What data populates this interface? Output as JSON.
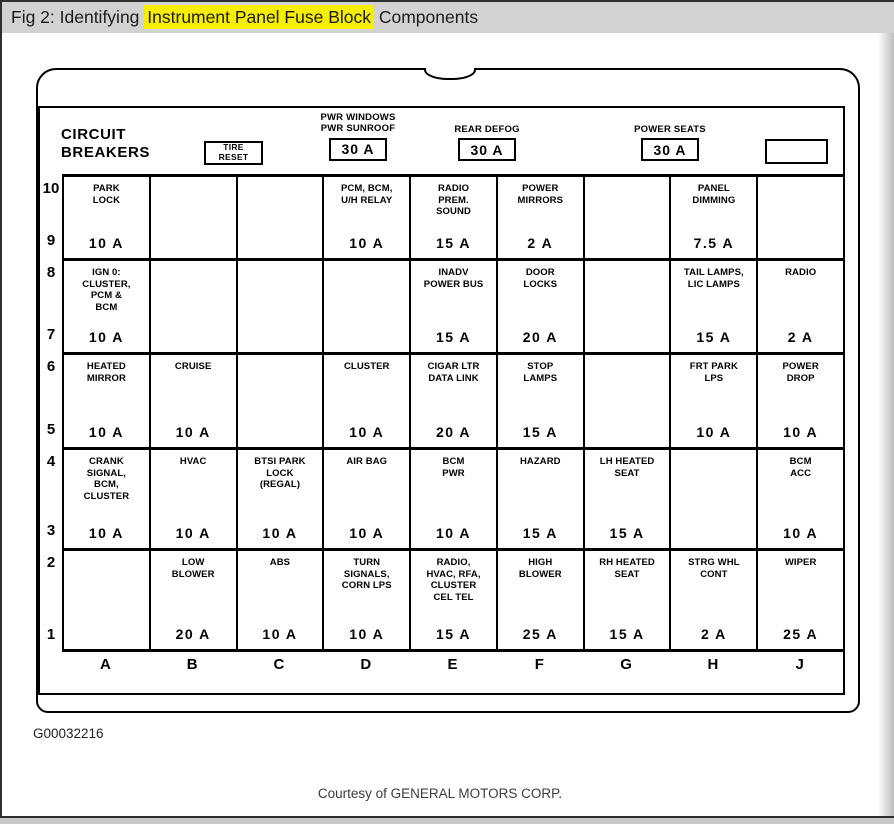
{
  "title_bar": {
    "prefix": "Fig 2: Identifying ",
    "highlight": "Instrument Panel Fuse Block",
    "suffix": " Components",
    "highlight_color": "#f7ee00",
    "bar_color": "#d2d2d2"
  },
  "header": {
    "circuit_breakers_line1": "CIRCUIT",
    "circuit_breakers_line2": "BREAKERS",
    "tire_reset_line1": "TIRE",
    "tire_reset_line2": "RESET",
    "breakers": [
      {
        "label_lines": [
          "PWR WINDOWS",
          "PWR SUNROOF"
        ],
        "value": "30 A"
      },
      {
        "label_lines": [
          "REAR DEFOG"
        ],
        "value": "30 A"
      },
      {
        "label_lines": [
          "POWER SEATS"
        ],
        "value": "30 A"
      },
      {
        "label_lines": [],
        "value": ""
      }
    ]
  },
  "grid": {
    "column_letters": [
      "A",
      "B",
      "C",
      "D",
      "E",
      "F",
      "G",
      "H",
      "J"
    ],
    "bands": [
      {
        "row_top": "10",
        "row_bottom": "9",
        "cells": [
          {
            "label": "PARK\nLOCK",
            "amp": "10 A"
          },
          {
            "label": "",
            "amp": ""
          },
          {
            "label": "",
            "amp": ""
          },
          {
            "label": "PCM, BCM,\nU/H RELAY",
            "amp": "10 A"
          },
          {
            "label": "RADIO\nPREM.\nSOUND",
            "amp": "15 A"
          },
          {
            "label": "POWER\nMIRRORS",
            "amp": "2 A"
          },
          {
            "label": "",
            "amp": ""
          },
          {
            "label": "PANEL\nDIMMING",
            "amp": "7.5 A"
          },
          {
            "label": "",
            "amp": ""
          }
        ]
      },
      {
        "row_top": "8",
        "row_bottom": "7",
        "cells": [
          {
            "label": "IGN 0:\nCLUSTER,\nPCM &\nBCM",
            "amp": "10 A"
          },
          {
            "label": "",
            "amp": ""
          },
          {
            "label": "",
            "amp": ""
          },
          {
            "label": "",
            "amp": ""
          },
          {
            "label": "INADV\nPOWER BUS",
            "amp": "15 A"
          },
          {
            "label": "DOOR\nLOCKS",
            "amp": "20 A"
          },
          {
            "label": "",
            "amp": ""
          },
          {
            "label": "TAIL LAMPS,\nLIC LAMPS",
            "amp": "15 A"
          },
          {
            "label": "RADIO",
            "amp": "2 A"
          }
        ]
      },
      {
        "row_top": "6",
        "row_bottom": "5",
        "cells": [
          {
            "label": "HEATED\nMIRROR",
            "amp": "10 A"
          },
          {
            "label": "CRUISE",
            "amp": "10 A"
          },
          {
            "label": "",
            "amp": ""
          },
          {
            "label": "CLUSTER",
            "amp": "10 A"
          },
          {
            "label": "CIGAR LTR\nDATA LINK",
            "amp": "20 A"
          },
          {
            "label": "STOP\nLAMPS",
            "amp": "15 A"
          },
          {
            "label": "",
            "amp": ""
          },
          {
            "label": "FRT PARK\nLPS",
            "amp": "10 A"
          },
          {
            "label": "POWER\nDROP",
            "amp": "10 A"
          }
        ]
      },
      {
        "row_top": "4",
        "row_bottom": "3",
        "cells": [
          {
            "label": "CRANK\nSIGNAL,\nBCM,\nCLUSTER",
            "amp": "10 A"
          },
          {
            "label": "HVAC",
            "amp": "10 A"
          },
          {
            "label": "BTSI PARK\nLOCK\n(REGAL)",
            "amp": "10 A"
          },
          {
            "label": "AIR BAG",
            "amp": "10 A"
          },
          {
            "label": "BCM\nPWR",
            "amp": "10 A"
          },
          {
            "label": "HAZARD",
            "amp": "15 A"
          },
          {
            "label": "LH HEATED\nSEAT",
            "amp": "15 A"
          },
          {
            "label": "",
            "amp": ""
          },
          {
            "label": "BCM\nACC",
            "amp": "10 A"
          }
        ]
      },
      {
        "row_top": "2",
        "row_bottom": "1",
        "cells": [
          {
            "label": "",
            "amp": ""
          },
          {
            "label": "LOW\nBLOWER",
            "amp": "20 A"
          },
          {
            "label": "ABS",
            "amp": "10 A"
          },
          {
            "label": "TURN\nSIGNALS,\nCORN LPS",
            "amp": "10 A"
          },
          {
            "label": "RADIO,\nHVAC, RFA,\nCLUSTER\nCEL TEL",
            "amp": "15 A"
          },
          {
            "label": "HIGH\nBLOWER",
            "amp": "25 A"
          },
          {
            "label": "RH HEATED\nSEAT",
            "amp": "15 A"
          },
          {
            "label": "STRG WHL\nCONT",
            "amp": "2 A"
          },
          {
            "label": "WIPER",
            "amp": "25 A"
          }
        ]
      }
    ]
  },
  "footer": {
    "figure_code": "G00032216",
    "courtesy": "Courtesy of GENERAL MOTORS CORP."
  }
}
